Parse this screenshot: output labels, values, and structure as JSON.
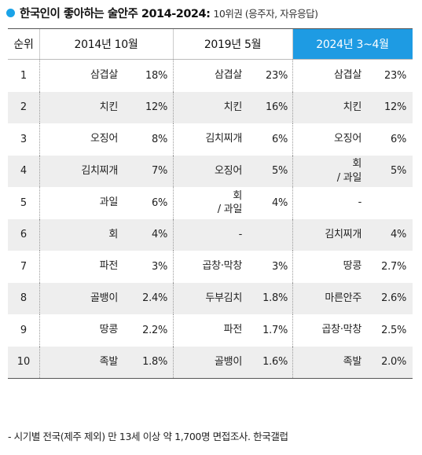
{
  "title": {
    "main": "한국인이 좋아하는 술안주 2014-2024:",
    "sub": "10위권 (응주자, 자유응답)"
  },
  "footnote": "- 시기별 전국(제주 제외) 만 13세 이상 약 1,700명 면접조사. 한국갤럽",
  "colors": {
    "accent": "#1e9be3",
    "dot": "#1aa3e8",
    "row_alt": "#eeeeee"
  },
  "chart_data": {
    "type": "table",
    "columns": [
      "순위",
      "2014년 10월",
      "2019년 5월",
      "2024년 3~4월"
    ],
    "rows": [
      {
        "rank": "1",
        "p2014": {
          "name": "삼겹살",
          "pct": "18%"
        },
        "p2019": {
          "name": "삼겹살",
          "pct": "23%"
        },
        "p2024": {
          "name": "삼겹살",
          "pct": "23%"
        }
      },
      {
        "rank": "2",
        "p2014": {
          "name": "치킨",
          "pct": "12%"
        },
        "p2019": {
          "name": "치킨",
          "pct": "16%"
        },
        "p2024": {
          "name": "치킨",
          "pct": "12%"
        }
      },
      {
        "rank": "3",
        "p2014": {
          "name": "오징어",
          "pct": "8%"
        },
        "p2019": {
          "name": "김치찌개",
          "pct": "6%"
        },
        "p2024": {
          "name": "오징어",
          "pct": "6%"
        }
      },
      {
        "rank": "4",
        "p2014": {
          "name": "김치찌개",
          "pct": "7%"
        },
        "p2019": {
          "name": "오징어",
          "pct": "5%"
        },
        "p2024": {
          "name": "회\n/ 과일",
          "pct": "5%"
        }
      },
      {
        "rank": "5",
        "p2014": {
          "name": "과일",
          "pct": "6%"
        },
        "p2019": {
          "name": "회\n/ 과일",
          "pct": "4%"
        },
        "p2024": {
          "name": "-",
          "pct": ""
        }
      },
      {
        "rank": "6",
        "p2014": {
          "name": "회",
          "pct": "4%"
        },
        "p2019": {
          "name": "-",
          "pct": ""
        },
        "p2024": {
          "name": "김치찌개",
          "pct": "4%"
        }
      },
      {
        "rank": "7",
        "p2014": {
          "name": "파전",
          "pct": "3%"
        },
        "p2019": {
          "name": "곱창·막창",
          "pct": "3%"
        },
        "p2024": {
          "name": "땅콩",
          "pct": "2.7%"
        }
      },
      {
        "rank": "8",
        "p2014": {
          "name": "골뱅이",
          "pct": "2.4%"
        },
        "p2019": {
          "name": "두부김치",
          "pct": "1.8%"
        },
        "p2024": {
          "name": "마른안주",
          "pct": "2.6%"
        }
      },
      {
        "rank": "9",
        "p2014": {
          "name": "땅콩",
          "pct": "2.2%"
        },
        "p2019": {
          "name": "파전",
          "pct": "1.7%"
        },
        "p2024": {
          "name": "곱창·막창",
          "pct": "2.5%"
        }
      },
      {
        "rank": "10",
        "p2014": {
          "name": "족발",
          "pct": "1.8%"
        },
        "p2019": {
          "name": "골뱅이",
          "pct": "1.6%"
        },
        "p2024": {
          "name": "족발",
          "pct": "2.0%"
        }
      }
    ]
  }
}
